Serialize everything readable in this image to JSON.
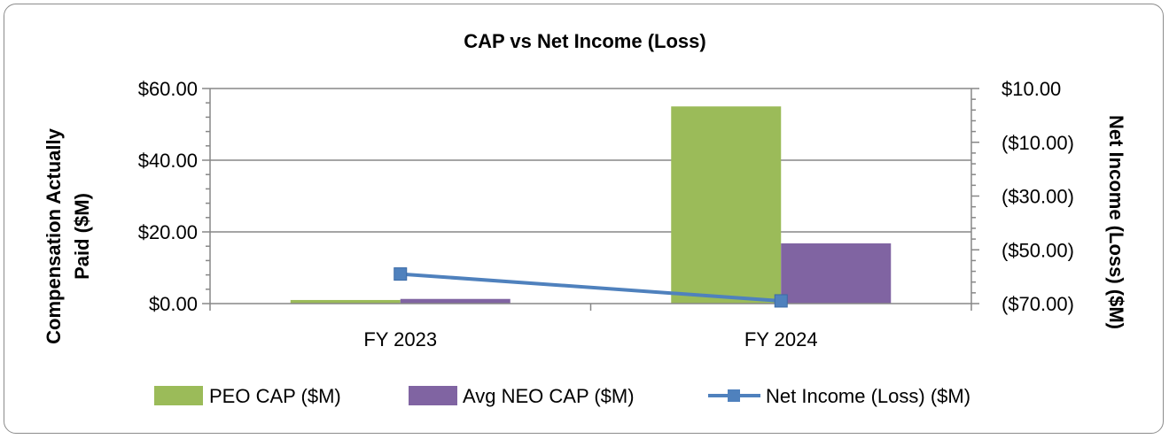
{
  "chart_data": {
    "type": "bar",
    "title": "CAP vs Net Income (Loss)",
    "categories": [
      "FY 2023",
      "FY 2024"
    ],
    "series": [
      {
        "name": "PEO CAP ($M)",
        "type": "bar",
        "axis": "left",
        "values": [
          1.0,
          55.0
        ]
      },
      {
        "name": "Avg NEO CAP ($M)",
        "type": "bar",
        "axis": "left",
        "values": [
          1.3,
          16.8
        ]
      },
      {
        "name": "Net Income (Loss) ($M)",
        "type": "line",
        "axis": "right",
        "values": [
          -59.0,
          -69.0
        ]
      }
    ],
    "ylabel": "Compensation Actually Paid ($M)",
    "y2label": "Net Income (Loss) ($M)",
    "ylim": [
      0,
      60
    ],
    "y2lim": [
      -70,
      10
    ],
    "yticks": [
      "$0.00",
      "$20.00",
      "$40.00",
      "$60.00"
    ],
    "y2ticks": [
      "($70.00)",
      "($50.00)",
      "($30.00)",
      "($10.00)",
      "$10.00"
    ],
    "grid": true,
    "legend": "bottom",
    "colors": {
      "peo": "#9bbb59",
      "neo": "#8064a2",
      "net": "#4f81bd",
      "grid": "#878787"
    }
  }
}
